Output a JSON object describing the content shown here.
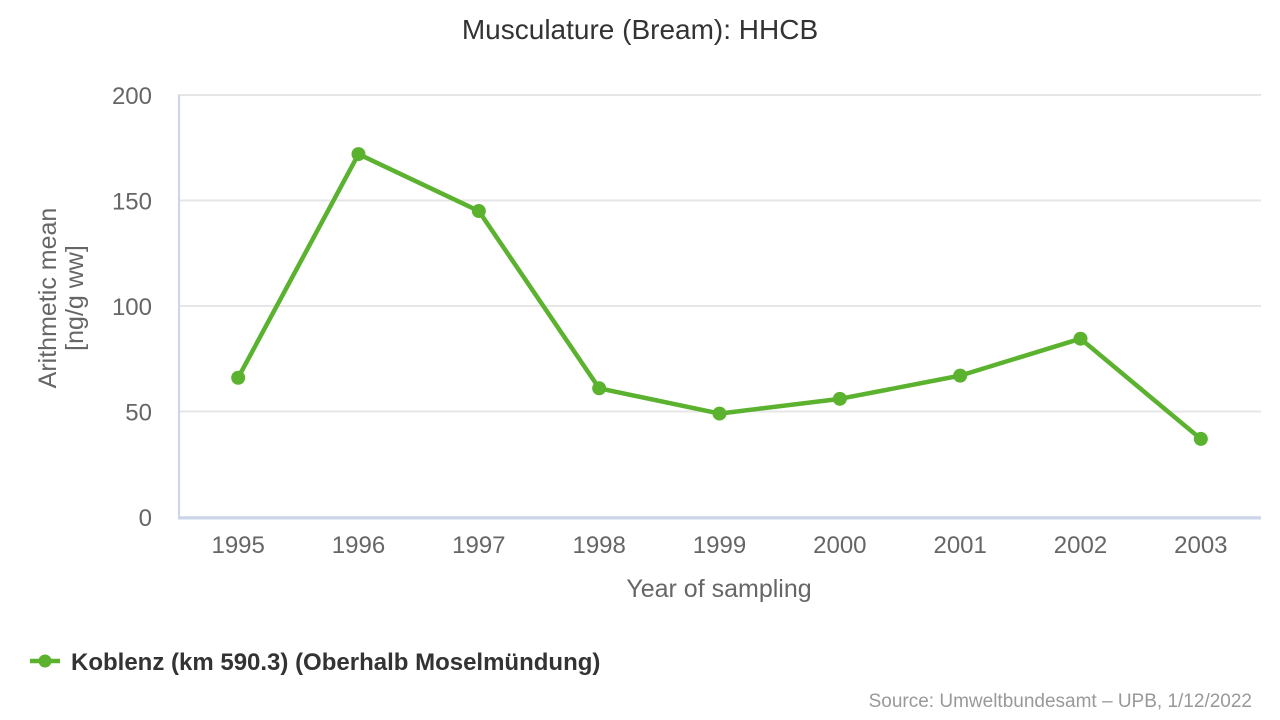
{
  "chart_data": {
    "type": "line",
    "title": "Musculature (Bream): HHCB",
    "xlabel": "Year of sampling",
    "ylabel": "Arithmetic mean [ng/g ww]",
    "ylabel_lines": [
      "Arithmetic mean",
      "[ng/g ww]"
    ],
    "categories": [
      "1995",
      "1996",
      "1997",
      "1998",
      "1999",
      "2000",
      "2001",
      "2002",
      "2003"
    ],
    "series": [
      {
        "name": "Koblenz (km 590.3) (Oberhalb Moselmündung)",
        "color": "#5bb22e",
        "values": [
          66,
          172,
          145,
          61,
          49,
          56,
          67,
          84.5,
          37
        ]
      }
    ],
    "ylim": [
      0,
      200
    ],
    "y_ticks": [
      0,
      50,
      100,
      150,
      200
    ],
    "grid": true,
    "legend_position": "bottom-left"
  },
  "footer": {
    "source_text": "Source: Umweltbundesamt – UPB, 1/12/2022"
  },
  "colors": {
    "series": "#5bb22e",
    "grid_line": "#e6e6e6",
    "axis_line": "#ccd6eb",
    "title_text": "#333333",
    "tick_text": "#666666",
    "legend_text": "#333333",
    "source_text": "#999999"
  }
}
